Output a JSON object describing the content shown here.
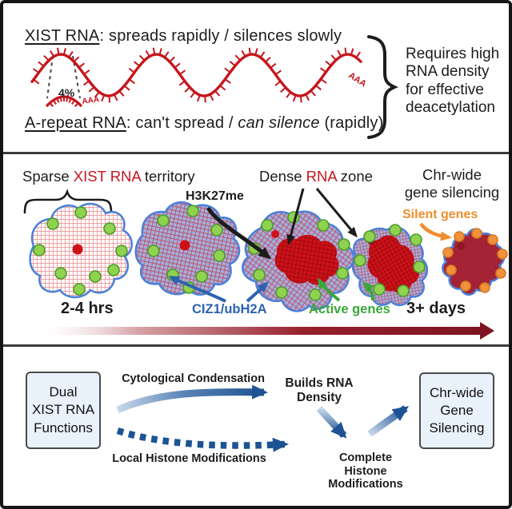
{
  "colors": {
    "ink": "#1c1c1c",
    "red": "#c5161d",
    "bright-red": "#cf1117",
    "maroon": "#7d1622",
    "blue-outline": "#4a80d9",
    "blue-text": "#2d62b0",
    "blue-arrow": "#1d5393",
    "green-text": "#3aa838",
    "green-dot": "#8ed24f",
    "green-dot-border": "#4e9a2a",
    "orange": "#ef8e2e",
    "orange-dot": "#f0913b",
    "orange-dot-border": "#d97a22",
    "box-fill": "#e9f1fb"
  },
  "panel1": {
    "headline_lead": "XIST RNA",
    "headline_rest": ": spreads rapidly / silences slowly",
    "pct_label": "4%",
    "aaa_long": "AAA",
    "aaa_short": "AAA",
    "arepeat_lead": "A-repeat RNA",
    "arepeat_mid": ": can't spread / ",
    "arepeat_italic": "can silence",
    "arepeat_tail": " (rapidly)",
    "brace_note": "Requires high\nRNA density\nfor effective\ndeacetylation"
  },
  "panel2": {
    "sparse_lead": "Sparse ",
    "sparse_red": "XIST RNA",
    "sparse_tail": " territory",
    "h3k27me_label": "H3K27me",
    "dense_lead": "Dense ",
    "dense_red": "RNA",
    "dense_tail": " zone",
    "chr_wide_label": "Chr-wide\ngene silencing",
    "silent_genes_label": "Silent genes",
    "time_start": "2-4 hrs",
    "ciz1_label": "CIZ1/ubH2A",
    "active_genes_label": "Active genes",
    "time_end": "3+ days"
  },
  "panel3": {
    "left_box": "Dual\nXIST RNA\nFunctions",
    "top_path_label": "Cytological Condensation",
    "builds_label": "Builds RNA\nDensity",
    "bottom_path_label": "Local Histone Modifications",
    "complete_label": "Complete\nHistone Modifications",
    "right_box": "Chr-wide\nGene\nSilencing"
  }
}
